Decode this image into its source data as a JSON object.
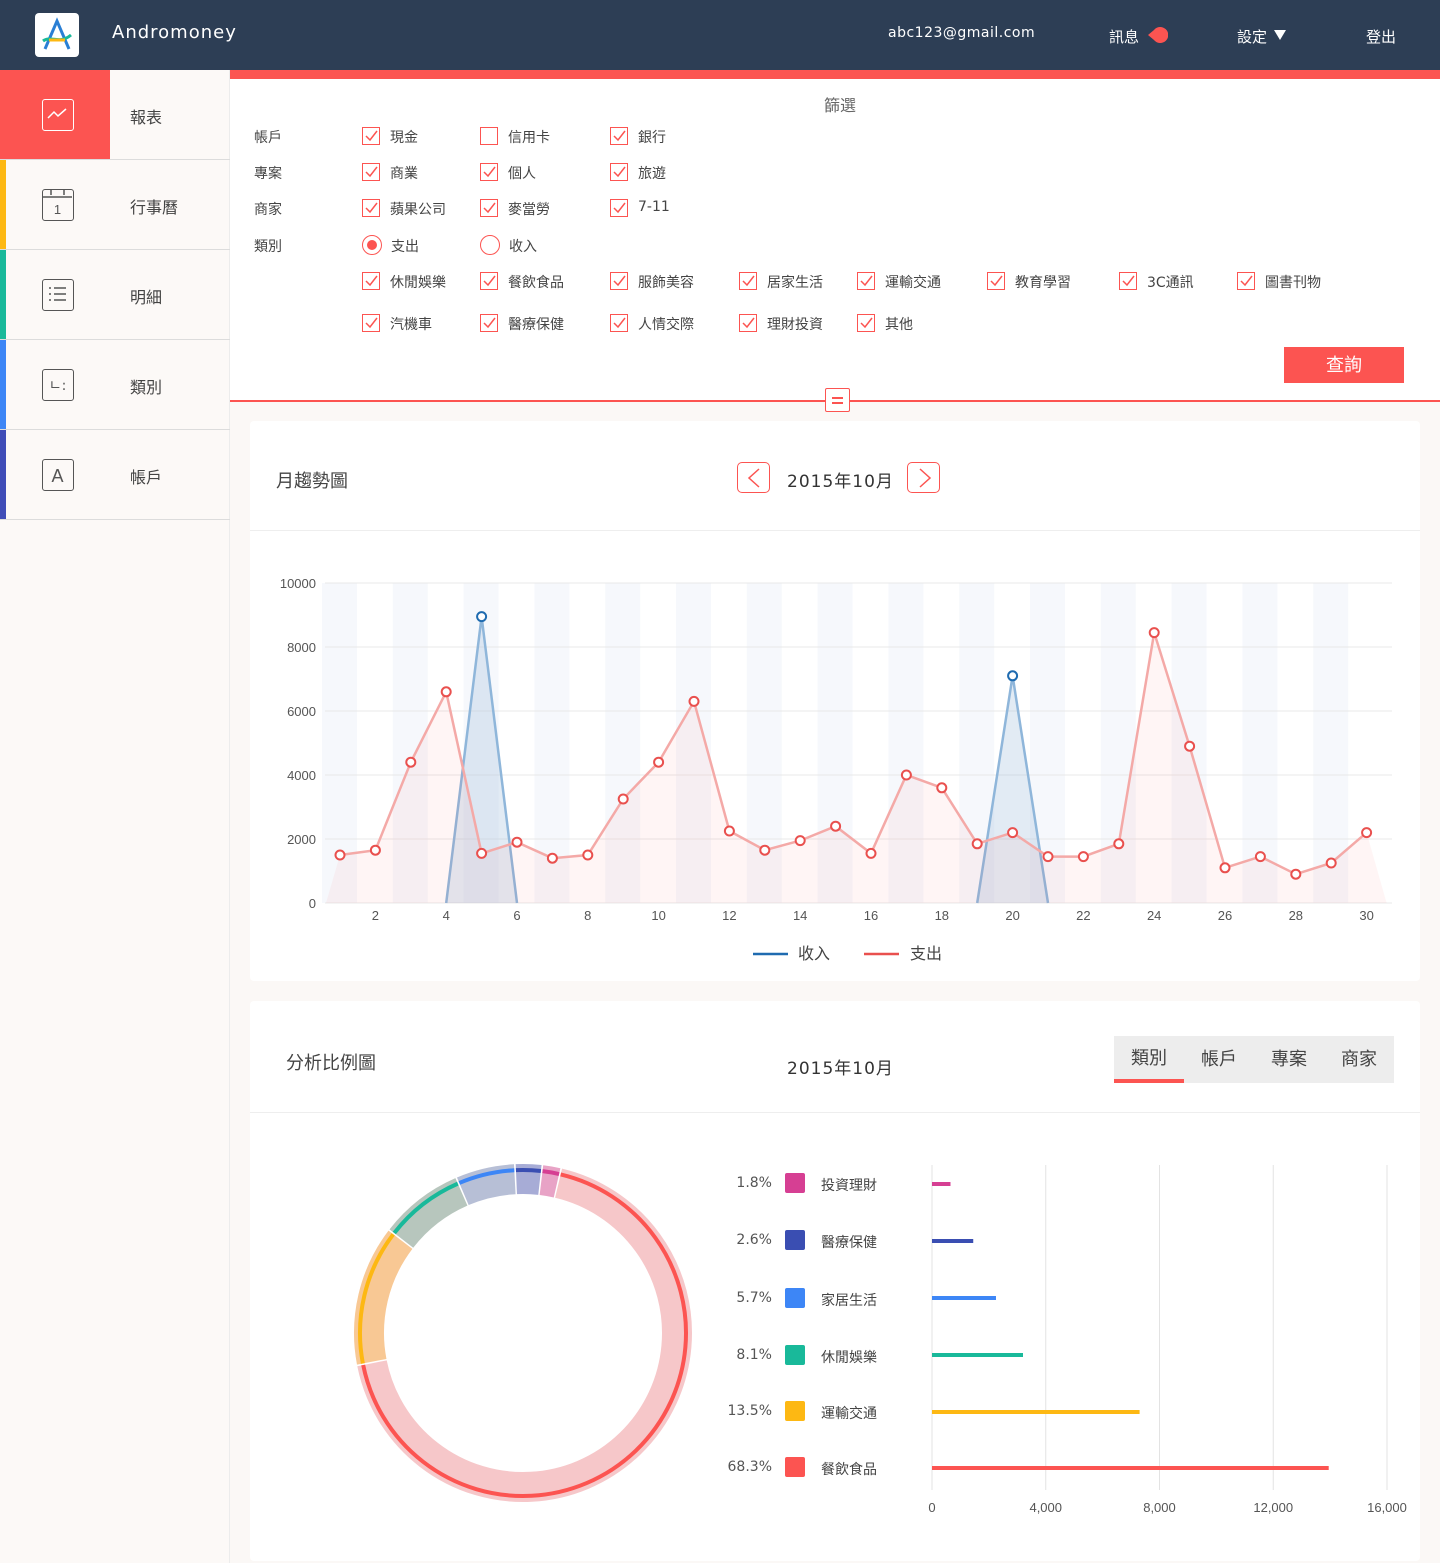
{
  "header": {
    "app_title": "Andromoney",
    "user_email": "abc123@gmail.com",
    "messages_label": "訊息",
    "settings_label": "設定",
    "logout_label": "登出"
  },
  "sidebar": {
    "items": [
      {
        "label": "報表",
        "icon": "chart-icon",
        "color": "#fc5451"
      },
      {
        "label": "行事曆",
        "icon": "calendar-icon",
        "color": "#fdb813",
        "icon_text": "1"
      },
      {
        "label": "明細",
        "icon": "list-icon",
        "color": "#19b99a"
      },
      {
        "label": "類別",
        "icon": "category-icon",
        "color": "#3d86f6",
        "icon_text": "ㄴ:"
      },
      {
        "label": "帳戶",
        "icon": "account-icon",
        "color": "#3f4db8",
        "icon_text": "A"
      }
    ]
  },
  "filter": {
    "title": "篩選",
    "rows": {
      "account": {
        "label": "帳戶",
        "options": [
          {
            "label": "現金",
            "checked": true
          },
          {
            "label": "信用卡",
            "checked": false
          },
          {
            "label": "銀行",
            "checked": true
          }
        ]
      },
      "project": {
        "label": "專案",
        "options": [
          {
            "label": "商業",
            "checked": true
          },
          {
            "label": "個人",
            "checked": true
          },
          {
            "label": "旅遊",
            "checked": true
          }
        ]
      },
      "merchant": {
        "label": "商家",
        "options": [
          {
            "label": "蘋果公司",
            "checked": true
          },
          {
            "label": "麥當勞",
            "checked": true
          },
          {
            "label": "7-11",
            "checked": true
          }
        ]
      },
      "category": {
        "label": "類別",
        "types": [
          {
            "label": "支出",
            "selected": true
          },
          {
            "label": "收入",
            "selected": false
          }
        ],
        "options": [
          {
            "label": "休閒娛樂",
            "checked": true
          },
          {
            "label": "餐飲食品",
            "checked": true
          },
          {
            "label": "服飾美容",
            "checked": true
          },
          {
            "label": "居家生活",
            "checked": true
          },
          {
            "label": "運輸交通",
            "checked": true
          },
          {
            "label": "教育學習",
            "checked": true
          },
          {
            "label": "3C通訊",
            "checked": true
          },
          {
            "label": "圖書刊物",
            "checked": true
          },
          {
            "label": "汽機車",
            "checked": true
          },
          {
            "label": "醫療保健",
            "checked": true
          },
          {
            "label": "人情交際",
            "checked": true
          },
          {
            "label": "理財投資",
            "checked": true
          },
          {
            "label": "其他",
            "checked": true
          }
        ]
      }
    },
    "query_label": "查詢"
  },
  "trend": {
    "title": "月趨勢圖",
    "period": "2015年10月"
  },
  "analysis": {
    "title": "分析比例圖",
    "period": "2015年10月",
    "tabs": [
      "類別",
      "帳戶",
      "專案",
      "商家"
    ],
    "active_tab": 0,
    "legend": [
      {
        "pct": "1.8%",
        "name": "投資理財",
        "color": "#d63f93"
      },
      {
        "pct": "2.6%",
        "name": "醫療保健",
        "color": "#3a4eb2"
      },
      {
        "pct": "5.7%",
        "name": "家居生活",
        "color": "#3d86f6"
      },
      {
        "pct": "8.1%",
        "name": "休閒娛樂",
        "color": "#19b99a"
      },
      {
        "pct": "13.5%",
        "name": "運輸交通",
        "color": "#fdb813"
      },
      {
        "pct": "68.3%",
        "name": "餐飲食品",
        "color": "#fc5451"
      }
    ]
  },
  "chart_data": [
    {
      "type": "line",
      "x": [
        1,
        2,
        3,
        4,
        5,
        6,
        7,
        8,
        9,
        10,
        11,
        12,
        13,
        14,
        15,
        16,
        17,
        18,
        19,
        20,
        21,
        22,
        23,
        24,
        25,
        26,
        27,
        28,
        29,
        30
      ],
      "x_ticks": [
        2,
        4,
        6,
        8,
        10,
        12,
        14,
        16,
        18,
        20,
        22,
        24,
        26,
        28,
        30
      ],
      "y_ticks": [
        0,
        2000,
        4000,
        6000,
        8000,
        10000
      ],
      "ylim": [
        0,
        10000
      ],
      "series": [
        {
          "name": "收入",
          "color": "#1f6bb0",
          "values": [
            0,
            0,
            0,
            0,
            8950,
            0,
            0,
            0,
            0,
            0,
            0,
            0,
            0,
            0,
            0,
            0,
            0,
            0,
            0,
            7100,
            0,
            0,
            0,
            0,
            0,
            0,
            0,
            0,
            0,
            0
          ]
        },
        {
          "name": "支出",
          "color": "#e9504e",
          "values": [
            1500,
            1650,
            4400,
            6600,
            1550,
            1900,
            1400,
            1500,
            3250,
            4400,
            6300,
            2250,
            1650,
            1950,
            2400,
            1550,
            4000,
            3600,
            1850,
            2200,
            1450,
            1450,
            1850,
            8450,
            4900,
            1100,
            1450,
            900,
            1250,
            2200
          ]
        }
      ]
    },
    {
      "type": "pie",
      "labels": [
        "投資理財",
        "醫療保健",
        "家居生活",
        "休閒娛樂",
        "運輸交通",
        "餐飲食品"
      ],
      "values": [
        1.8,
        2.6,
        5.7,
        8.1,
        13.5,
        68.3
      ],
      "colors": [
        "#d63f93",
        "#3a4eb2",
        "#3d86f6",
        "#19b99a",
        "#fdb813",
        "#fc5451"
      ]
    },
    {
      "type": "bar",
      "categories": [
        "投資理財",
        "醫療保健",
        "家居生活",
        "休閒娛樂",
        "運輸交通",
        "餐飲食品"
      ],
      "values": [
        650,
        1450,
        2250,
        3200,
        7300,
        13950
      ],
      "x_ticks": [
        "0",
        "4,000",
        "8,000",
        "12,000",
        "16,000"
      ],
      "xlim": [
        0,
        16000
      ],
      "colors": [
        "#d63f93",
        "#3a4eb2",
        "#3d86f6",
        "#19b99a",
        "#fdb813",
        "#fc5451"
      ]
    }
  ]
}
